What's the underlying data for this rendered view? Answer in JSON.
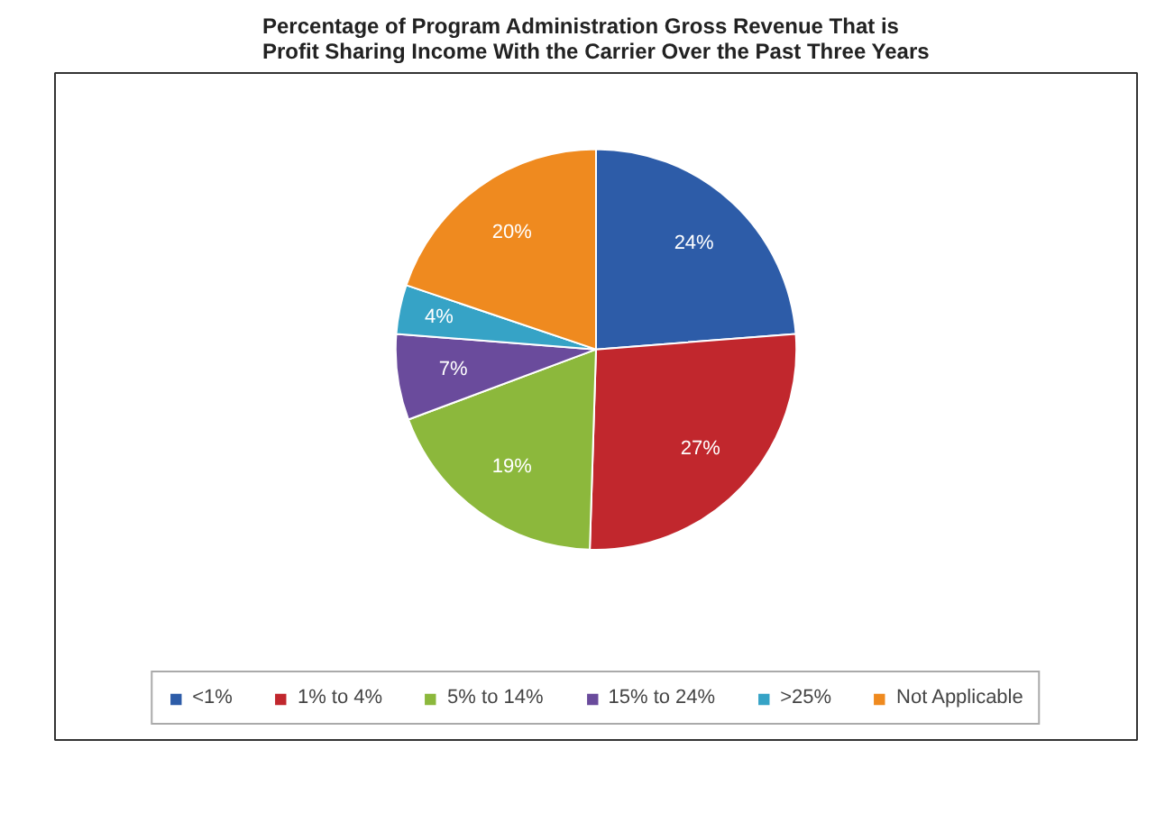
{
  "chart_data": {
    "type": "pie",
    "title": "Percentage of Program Administration Gross Revenue That is Profit Sharing Income With the Carrier Over the Past Three Years",
    "categories": [
      "<1%",
      "1% to 4%",
      "5% to 14%",
      "15% to 24%",
      ">25%",
      "Not Applicable"
    ],
    "values": [
      24,
      27,
      19,
      7,
      4,
      20
    ],
    "value_labels": [
      "24%",
      "27%",
      "19%",
      "7%",
      "4%",
      "20%"
    ],
    "colors": [
      "#2d5ca8",
      "#c1272d",
      "#8cb83c",
      "#6a4b9c",
      "#36a3c6",
      "#ef8a1f"
    ],
    "legend": "bottom"
  }
}
